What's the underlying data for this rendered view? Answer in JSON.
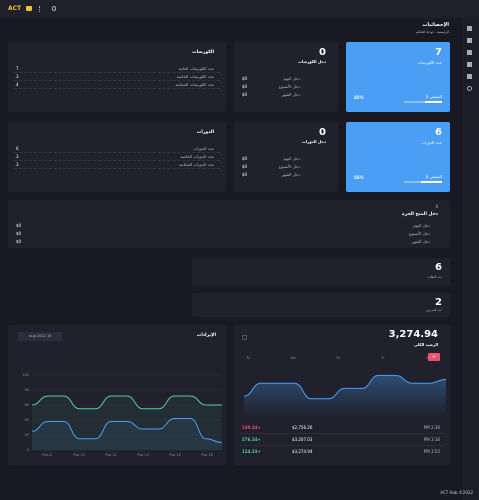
{
  "topbar": {
    "logo": "ACT"
  },
  "header": {
    "title": "الإحصائيات",
    "breadcrumb": "الرئيسية - لوحة التحكم"
  },
  "stat_cards": [
    {
      "value": 7,
      "label": "عدد الكورسات",
      "percent": 45,
      "percent_label": "45%",
      "remaining": "المتبقي $"
    },
    {
      "value": 6,
      "label": "عدد الدورات",
      "percent": 56,
      "percent_label": "56%",
      "remaining": "المتبقي $"
    }
  ],
  "income_cards": [
    {
      "value": 0,
      "label": "دخل الكورسات",
      "rows": [
        {
          "label": "دخل اليوم",
          "value": "$0"
        },
        {
          "label": "دخل الأسبوع",
          "value": "$0"
        },
        {
          "label": "دخل الشهر",
          "value": "$0"
        }
      ]
    },
    {
      "value": 0,
      "label": "دخل الدورات",
      "rows": [
        {
          "label": "دخل اليوم",
          "value": "$0"
        },
        {
          "label": "دخل الأسبوع",
          "value": "$0"
        },
        {
          "label": "دخل الشهر",
          "value": "$0"
        }
      ]
    }
  ],
  "list_cards": [
    {
      "title": "الكورسات",
      "rows": [
        {
          "label": "عدد الكورسات العامة",
          "value": 7
        },
        {
          "label": "عدد الكورسات الخاصة",
          "value": 3
        },
        {
          "label": "عدد الكورسات المجانية",
          "value": 4
        }
      ]
    },
    {
      "title": "الدورات",
      "rows": [
        {
          "label": "عدد الدورات",
          "value": 6
        },
        {
          "label": "عدد الدورات الخاصة",
          "value": 3
        },
        {
          "label": "عدد الدورات المجانية",
          "value": 3
        }
      ]
    }
  ],
  "freelance_card": {
    "value": 0,
    "label": "دخل المنح الحرة",
    "rows": [
      {
        "label": "دخل اليوم",
        "value": "$0"
      },
      {
        "label": "دخل الأسبوع",
        "value": "$0"
      },
      {
        "label": "دخل الشهر",
        "value": "$0"
      }
    ]
  },
  "count_cards": [
    {
      "value": 6,
      "label": "عدد الطلاب"
    },
    {
      "value": 2,
      "label": "عدد المدربين"
    }
  ],
  "revenue_chart": {
    "title": "الإيرادات",
    "date": "Aug 2022 15",
    "x_labels": [
      "Feb 8",
      "Feb 10",
      "Feb 12",
      "Feb 14",
      "Feb 16",
      "Feb 18"
    ],
    "ylim": [
      0,
      100
    ],
    "yticks": [
      0,
      20,
      40,
      60,
      80,
      100
    ],
    "series": [
      {
        "color": "#4fd18b",
        "values": [
          60,
          72,
          72,
          55,
          55,
          72,
          72,
          55,
          55,
          72,
          72,
          60,
          60
        ]
      },
      {
        "color": "#4a9ff5",
        "values": [
          25,
          38,
          38,
          15,
          15,
          38,
          38,
          28,
          28,
          42,
          42,
          15,
          10
        ]
      }
    ]
  },
  "balance_chart": {
    "value": "3,274.94",
    "label": "الرصيد الكلي",
    "button": "+",
    "x_labels": [
      "Tu",
      "We",
      "Th",
      "Fr",
      "Sa"
    ],
    "ylim": [
      0,
      100
    ],
    "color": "#4a9ff5",
    "values": [
      40,
      65,
      65,
      65,
      35,
      35,
      55,
      55,
      80,
      80,
      65,
      65,
      72
    ],
    "transactions": [
      {
        "change": "130.34+",
        "color": "#f0506e",
        "balance": "$2,756.26",
        "time": "PM 2:36"
      },
      {
        "change": "576.34+",
        "color": "#4fd18b",
        "balance": "$3,207.03",
        "time": "PM 3:16"
      },
      {
        "change": "124.33+",
        "color": "#4fd18b",
        "balance": "$3,274.94",
        "time": "PM 3:55"
      }
    ]
  },
  "footer": "ACT Hub ©2022"
}
